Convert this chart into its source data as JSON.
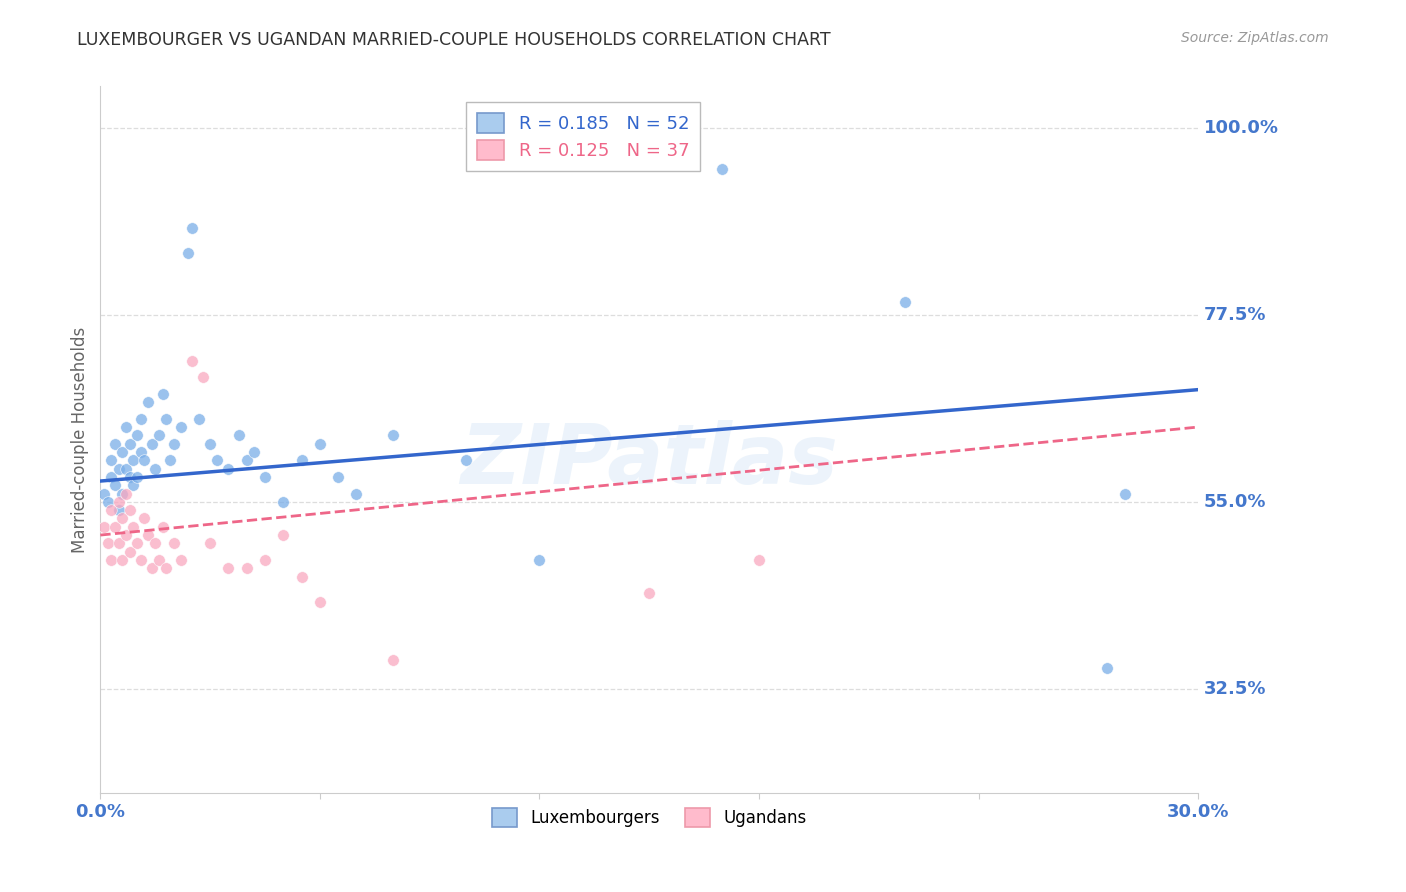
{
  "title": "LUXEMBOURGER VS UGANDAN MARRIED-COUPLE HOUSEHOLDS CORRELATION CHART",
  "source": "Source: ZipAtlas.com",
  "ylabel": "Married-couple Households",
  "yticks_labels": [
    "100.0%",
    "77.5%",
    "55.0%",
    "32.5%"
  ],
  "ytick_values": [
    1.0,
    0.775,
    0.55,
    0.325
  ],
  "xlim": [
    0.0,
    0.3
  ],
  "ylim": [
    0.2,
    1.05
  ],
  "lux_x": [
    0.001,
    0.002,
    0.003,
    0.003,
    0.004,
    0.004,
    0.005,
    0.005,
    0.006,
    0.006,
    0.007,
    0.007,
    0.008,
    0.008,
    0.009,
    0.009,
    0.01,
    0.01,
    0.011,
    0.011,
    0.012,
    0.013,
    0.014,
    0.015,
    0.016,
    0.017,
    0.018,
    0.019,
    0.02,
    0.022,
    0.024,
    0.025,
    0.027,
    0.03,
    0.032,
    0.035,
    0.038,
    0.04,
    0.042,
    0.045,
    0.05,
    0.055,
    0.06,
    0.065,
    0.07,
    0.08,
    0.1,
    0.12,
    0.17,
    0.22,
    0.275,
    0.28
  ],
  "lux_y": [
    0.56,
    0.55,
    0.6,
    0.58,
    0.62,
    0.57,
    0.59,
    0.54,
    0.61,
    0.56,
    0.64,
    0.59,
    0.58,
    0.62,
    0.57,
    0.6,
    0.63,
    0.58,
    0.65,
    0.61,
    0.6,
    0.67,
    0.62,
    0.59,
    0.63,
    0.68,
    0.65,
    0.6,
    0.62,
    0.64,
    0.85,
    0.88,
    0.65,
    0.62,
    0.6,
    0.59,
    0.63,
    0.6,
    0.61,
    0.58,
    0.55,
    0.6,
    0.62,
    0.58,
    0.56,
    0.63,
    0.6,
    0.48,
    0.95,
    0.79,
    0.35,
    0.56
  ],
  "uga_x": [
    0.001,
    0.002,
    0.003,
    0.003,
    0.004,
    0.005,
    0.005,
    0.006,
    0.006,
    0.007,
    0.007,
    0.008,
    0.008,
    0.009,
    0.01,
    0.011,
    0.012,
    0.013,
    0.014,
    0.015,
    0.016,
    0.017,
    0.018,
    0.02,
    0.022,
    0.025,
    0.028,
    0.03,
    0.035,
    0.04,
    0.045,
    0.05,
    0.055,
    0.06,
    0.08,
    0.15,
    0.18
  ],
  "uga_y": [
    0.52,
    0.5,
    0.54,
    0.48,
    0.52,
    0.55,
    0.5,
    0.53,
    0.48,
    0.56,
    0.51,
    0.54,
    0.49,
    0.52,
    0.5,
    0.48,
    0.53,
    0.51,
    0.47,
    0.5,
    0.48,
    0.52,
    0.47,
    0.5,
    0.48,
    0.72,
    0.7,
    0.5,
    0.47,
    0.47,
    0.48,
    0.51,
    0.46,
    0.43,
    0.36,
    0.44,
    0.48
  ],
  "lux_trend_x": [
    0.0,
    0.3
  ],
  "lux_trend_y": [
    0.575,
    0.685
  ],
  "uga_trend_x": [
    0.0,
    0.3
  ],
  "uga_trend_y": [
    0.51,
    0.64
  ],
  "background_color": "#ffffff",
  "grid_color": "#dddddd",
  "axis_label_color": "#4477cc",
  "ylabel_color": "#666666",
  "title_color": "#333333",
  "source_color": "#999999",
  "lux_scatter_color": "#7aaee8",
  "uga_scatter_color": "#f9a8c0",
  "lux_line_color": "#3366cc",
  "uga_line_color": "#ee6688",
  "marker_size": 70,
  "marker_alpha": 0.75,
  "watermark": "ZIPatlas",
  "legend1_label": "R = 0.185   N = 52",
  "legend2_label": "R = 0.125   N = 37"
}
